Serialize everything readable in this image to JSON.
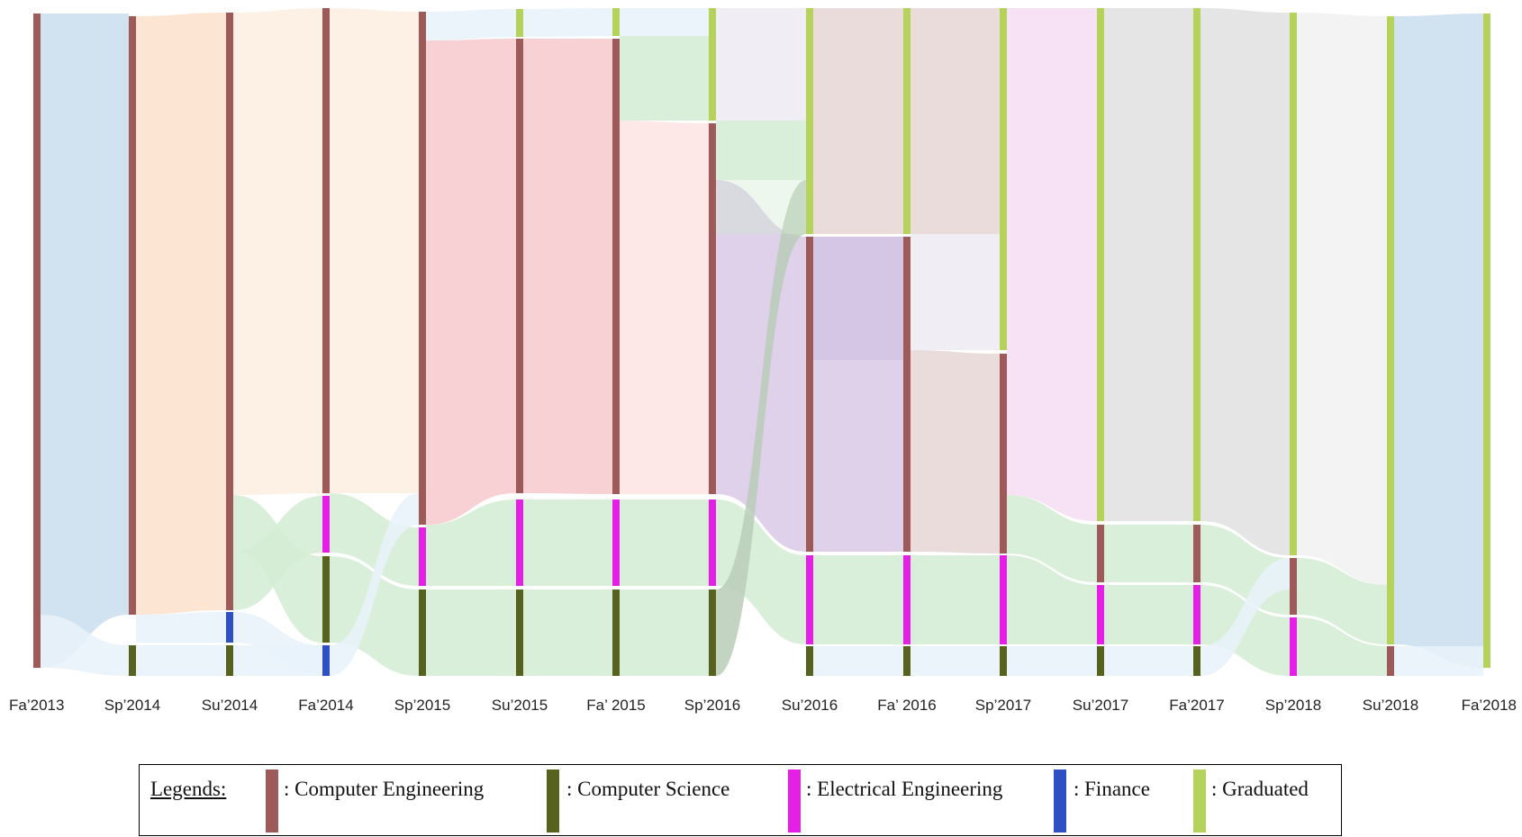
{
  "terms": [
    "Fa’2013",
    "Sp’2014",
    "Su’2014",
    "Fa’2014",
    "Sp’2015",
    "Su’2015",
    "Fa’ 2015",
    "Sp’2016",
    "Su’2016",
    "Fa’ 2016",
    "Sp’2017",
    "Su’2017",
    "Fa’2017",
    "Sp’2018",
    "Su’2018",
    "Fa’2018"
  ],
  "categories": {
    "CE": {
      "label": ": Computer Engineering",
      "color": "#9e5a59"
    },
    "CS": {
      "label": ": Computer Science",
      "color": "#56621e"
    },
    "EE": {
      "label": ": Electrical Engineering",
      "color": "#e61fe6"
    },
    "FN": {
      "label": ": Finance",
      "color": "#2f4fc4"
    },
    "GR": {
      "label": ": Graduated",
      "color": "#b5d35a"
    }
  },
  "legend": {
    "title": "Legends:",
    "items": [
      {
        "key": "CE",
        "label": ": Computer Engineering"
      },
      {
        "key": "CS",
        "label": ": Computer Science"
      },
      {
        "key": "EE",
        "label": ": Electrical Engineering"
      },
      {
        "key": "FN",
        "label": ": Finance"
      },
      {
        "key": "GR",
        "label": ": Graduated"
      }
    ]
  },
  "flow_colors": [
    "#c9deee",
    "#fde0cb",
    "#fdeee2",
    "#f6c9cc",
    "#fde3e3",
    "#eeeaf2",
    "#e6d6d5",
    "#f6ddf3",
    "#e0e0e0",
    "#f1f1f1",
    "#d4ecd2",
    "#e9f2fa",
    "#d9c9e6",
    "#b8cdb7"
  ]
}
